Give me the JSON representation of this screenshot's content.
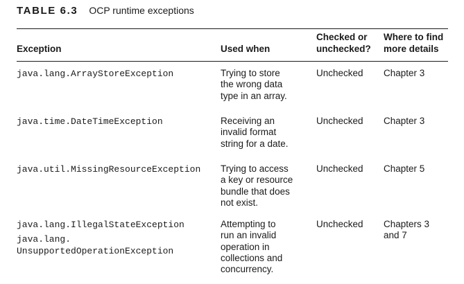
{
  "table": {
    "number": "TABLE 6.3",
    "title": "OCP runtime exceptions",
    "headers": {
      "exception": "Exception",
      "used_when": "Used when",
      "checked": "Checked or\nunchecked?",
      "details": "Where to find\nmore details"
    },
    "rows": [
      {
        "exception": "java.lang.ArrayStoreException",
        "used_when": "Trying to store\nthe wrong data\ntype in an array.",
        "checked": "Unchecked",
        "details": "Chapter 3"
      },
      {
        "exception": "java.time.DateTimeException",
        "used_when": "Receiving an\ninvalid format\nstring for a date.",
        "checked": "Unchecked",
        "details": "Chapter 3"
      },
      {
        "exception": "java.util.MissingResourceException",
        "used_when": "Trying to access\na key or resource\nbundle that does\nnot exist.",
        "checked": "Unchecked",
        "details": "Chapter 5"
      },
      {
        "exception": "java.lang.IllegalStateException",
        "exception2": "java.lang.\nUnsupportedOperationException",
        "used_when": "Attempting to\nrun an invalid\noperation in\ncollections and\nconcurrency.",
        "checked": "Unchecked",
        "details": "Chapters 3\nand 7"
      }
    ]
  }
}
